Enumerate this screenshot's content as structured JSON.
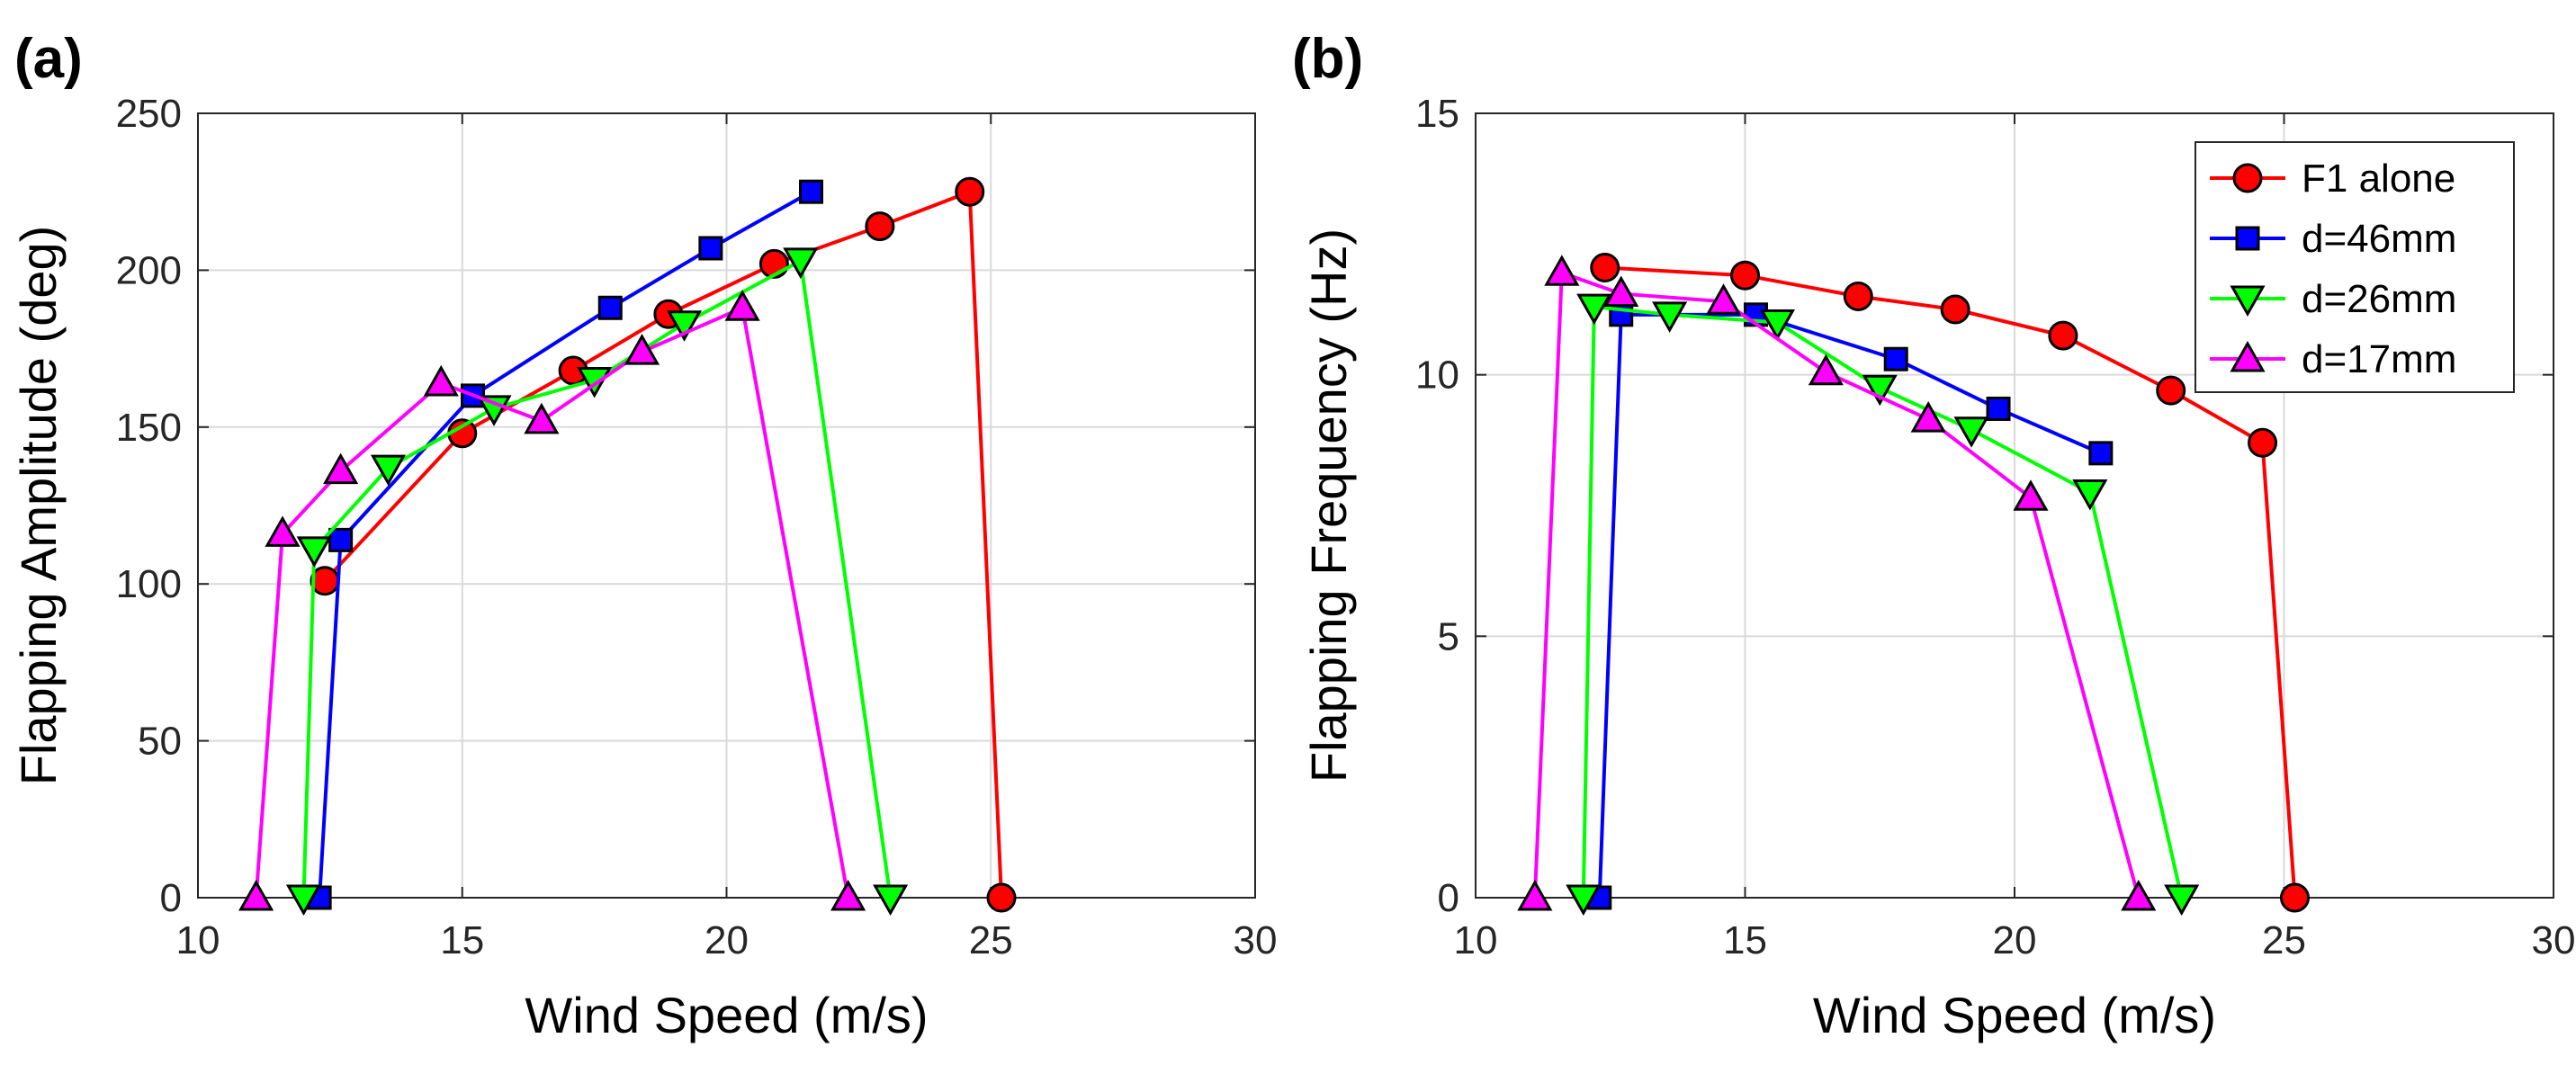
{
  "chart_data": [
    {
      "type": "line",
      "panel_label": "(a)",
      "xlabel": "Wind Speed (m/s)",
      "ylabel": "Flapping Amplitude (deg)",
      "xlim": [
        10,
        30
      ],
      "ylim": [
        0,
        250
      ],
      "xticks": [
        10,
        15,
        20,
        25,
        30
      ],
      "yticks": [
        0,
        50,
        100,
        150,
        200,
        250
      ],
      "xtick_labels": [
        "10",
        "15",
        "20",
        "25",
        "30"
      ],
      "ytick_labels": [
        "0",
        "50",
        "100",
        "150",
        "200",
        "250"
      ],
      "grid": true,
      "series": [
        {
          "name": "F1 alone",
          "color": "#ff0000",
          "marker": "circle",
          "marker_fill": "#ff0000",
          "x": [
            12.4,
            15.0,
            17.1,
            18.9,
            20.9,
            22.9,
            24.6,
            25.2
          ],
          "y": [
            101,
            148,
            168,
            186,
            202,
            214,
            225,
            0
          ]
        },
        {
          "name": "d=46mm",
          "color": "#0000ff",
          "marker": "square",
          "marker_fill": "#0000ff",
          "x": [
            12.3,
            12.7,
            15.2,
            17.8,
            19.7,
            21.6
          ],
          "y": [
            0,
            114,
            160,
            188,
            207,
            225
          ]
        },
        {
          "name": "d=26mm",
          "color": "#00ff00",
          "marker": "triangle-down",
          "marker_fill": "#00ff00",
          "x": [
            12.0,
            12.2,
            13.6,
            15.6,
            17.5,
            19.2,
            21.4,
            23.1
          ],
          "y": [
            0,
            111,
            137,
            156,
            165,
            183,
            203,
            0
          ]
        },
        {
          "name": "d=17mm",
          "color": "#ff00ff",
          "marker": "triangle-up",
          "marker_fill": "#ff00ff",
          "x": [
            11.1,
            11.6,
            12.7,
            14.6,
            16.5,
            18.4,
            20.3,
            22.3
          ],
          "y": [
            0,
            116,
            136,
            164,
            152,
            174,
            188,
            0
          ]
        }
      ]
    },
    {
      "type": "line",
      "panel_label": "(b)",
      "xlabel": "Wind Speed (m/s)",
      "ylabel": "Flapping Frequency (Hz)",
      "xlim": [
        10,
        30
      ],
      "ylim": [
        0,
        15
      ],
      "xticks": [
        10,
        15,
        20,
        25,
        30
      ],
      "yticks": [
        0,
        5,
        10,
        15
      ],
      "xtick_labels": [
        "10",
        "15",
        "20",
        "25",
        "30"
      ],
      "ytick_labels": [
        "0",
        "5",
        "10",
        "15"
      ],
      "grid": true,
      "legend": {
        "position": "top-right",
        "entries": [
          "F1 alone",
          "d=46mm",
          "d=26mm",
          "d=17mm"
        ]
      },
      "series": [
        {
          "name": "F1 alone",
          "color": "#ff0000",
          "marker": "circle",
          "marker_fill": "#ff0000",
          "x": [
            12.4,
            15.0,
            17.1,
            18.9,
            20.9,
            22.9,
            24.6,
            25.2
          ],
          "y": [
            12.05,
            11.9,
            11.5,
            11.25,
            10.75,
            9.7,
            8.7,
            0
          ]
        },
        {
          "name": "d=46mm",
          "color": "#0000ff",
          "marker": "square",
          "marker_fill": "#0000ff",
          "x": [
            12.3,
            12.7,
            15.2,
            17.8,
            19.7,
            21.6
          ],
          "y": [
            0,
            11.15,
            11.15,
            10.3,
            9.35,
            8.5
          ]
        },
        {
          "name": "d=26mm",
          "color": "#00ff00",
          "marker": "triangle-down",
          "marker_fill": "#00ff00",
          "x": [
            12.0,
            12.2,
            13.6,
            15.6,
            17.5,
            19.2,
            21.4,
            23.1
          ],
          "y": [
            0,
            11.3,
            11.15,
            11.0,
            9.75,
            8.95,
            7.75,
            0
          ]
        },
        {
          "name": "d=17mm",
          "color": "#ff00ff",
          "marker": "triangle-up",
          "marker_fill": "#ff00ff",
          "x": [
            11.1,
            11.6,
            12.7,
            14.6,
            16.5,
            18.4,
            20.3,
            22.3
          ],
          "y": [
            0,
            11.95,
            11.55,
            11.4,
            10.05,
            9.15,
            7.65,
            0
          ]
        }
      ]
    }
  ]
}
